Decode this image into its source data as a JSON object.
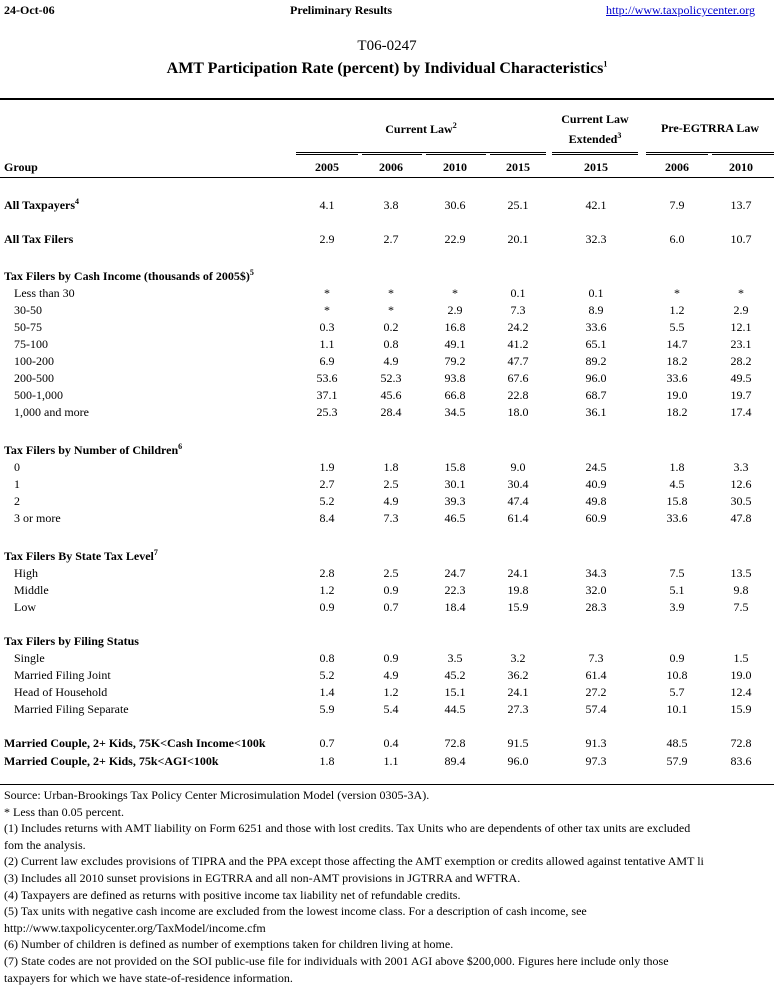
{
  "header": {
    "date": "24-Oct-06",
    "status": "Preliminary Results",
    "url": "http://www.taxpolicycenter.org"
  },
  "title": {
    "code": "T06-0247",
    "main": "AMT Participation Rate (percent) by Individual Characteristics",
    "main_sup": "1"
  },
  "table": {
    "group_header": "Group",
    "column_groups": [
      {
        "label": "Current Law",
        "sup": "2"
      },
      {
        "label": "Current Law",
        "label2": "Extended",
        "sup": "3"
      },
      {
        "label": "Pre-EGTRRA Law"
      }
    ],
    "years": [
      "2005",
      "2006",
      "2010",
      "2015",
      "2015",
      "2006",
      "2010"
    ],
    "sections": [
      {
        "title": "All Taxpayers",
        "sup": "4",
        "bold_row": true,
        "rows": [
          {
            "label": "All Taxpayers",
            "values": [
              "4.1",
              "3.8",
              "30.6",
              "25.1",
              "42.1",
              "7.9",
              "13.7"
            ]
          }
        ]
      },
      {
        "title": "All Tax Filers",
        "bold_row": true,
        "rows": [
          {
            "label": "All Tax Filers",
            "values": [
              "2.9",
              "2.7",
              "22.9",
              "20.1",
              "32.3",
              "6.0",
              "10.7"
            ]
          }
        ]
      },
      {
        "title": "Tax Filers by Cash Income (thousands of 2005$)",
        "sup": "5",
        "rows": [
          {
            "label": "Less than 30",
            "values": [
              "*",
              "*",
              "*",
              "0.1",
              "0.1",
              "*",
              "*"
            ]
          },
          {
            "label": "30-50",
            "values": [
              "*",
              "*",
              "2.9",
              "7.3",
              "8.9",
              "1.2",
              "2.9"
            ]
          },
          {
            "label": "50-75",
            "values": [
              "0.3",
              "0.2",
              "16.8",
              "24.2",
              "33.6",
              "5.5",
              "12.1"
            ]
          },
          {
            "label": "75-100",
            "values": [
              "1.1",
              "0.8",
              "49.1",
              "41.2",
              "65.1",
              "14.7",
              "23.1"
            ]
          },
          {
            "label": "100-200",
            "values": [
              "6.9",
              "4.9",
              "79.2",
              "47.7",
              "89.2",
              "18.2",
              "28.2"
            ]
          },
          {
            "label": "200-500",
            "values": [
              "53.6",
              "52.3",
              "93.8",
              "67.6",
              "96.0",
              "33.6",
              "49.5"
            ]
          },
          {
            "label": "500-1,000",
            "values": [
              "37.1",
              "45.6",
              "66.8",
              "22.8",
              "68.7",
              "19.0",
              "19.7"
            ]
          },
          {
            "label": "1,000 and more",
            "values": [
              "25.3",
              "28.4",
              "34.5",
              "18.0",
              "36.1",
              "18.2",
              "17.4"
            ]
          }
        ]
      },
      {
        "title": "Tax Filers by Number of Children",
        "sup": "6",
        "rows": [
          {
            "label": "0",
            "values": [
              "1.9",
              "1.8",
              "15.8",
              "9.0",
              "24.5",
              "1.8",
              "3.3"
            ]
          },
          {
            "label": "1",
            "values": [
              "2.7",
              "2.5",
              "30.1",
              "30.4",
              "40.9",
              "4.5",
              "12.6"
            ]
          },
          {
            "label": "2",
            "values": [
              "5.2",
              "4.9",
              "39.3",
              "47.4",
              "49.8",
              "15.8",
              "30.5"
            ]
          },
          {
            "label": "3 or more",
            "values": [
              "8.4",
              "7.3",
              "46.5",
              "61.4",
              "60.9",
              "33.6",
              "47.8"
            ]
          }
        ]
      },
      {
        "title": "Tax Filers By State Tax Level",
        "sup": "7",
        "rows": [
          {
            "label": "High",
            "values": [
              "2.8",
              "2.5",
              "24.7",
              "24.1",
              "34.3",
              "7.5",
              "13.5"
            ]
          },
          {
            "label": "Middle",
            "values": [
              "1.2",
              "0.9",
              "22.3",
              "19.8",
              "32.0",
              "5.1",
              "9.8"
            ]
          },
          {
            "label": "Low",
            "values": [
              "0.9",
              "0.7",
              "18.4",
              "15.9",
              "28.3",
              "3.9",
              "7.5"
            ]
          }
        ]
      },
      {
        "title": "Tax Filers by Filing Status",
        "rows": [
          {
            "label": "Single",
            "values": [
              "0.8",
              "0.9",
              "3.5",
              "3.2",
              "7.3",
              "0.9",
              "1.5"
            ]
          },
          {
            "label": "Married Filing Joint",
            "values": [
              "5.2",
              "4.9",
              "45.2",
              "36.2",
              "61.4",
              "10.8",
              "19.0"
            ]
          },
          {
            "label": "Head of Household",
            "values": [
              "1.4",
              "1.2",
              "15.1",
              "24.1",
              "27.2",
              "5.7",
              "12.4"
            ]
          },
          {
            "label": "Married Filing Separate",
            "values": [
              "5.9",
              "5.4",
              "44.5",
              "27.3",
              "57.4",
              "10.1",
              "15.9"
            ]
          }
        ]
      }
    ],
    "married_rows": [
      {
        "label": "Married Couple, 2+ Kids, 75K<Cash Income<100k",
        "values": [
          "0.7",
          "0.4",
          "72.8",
          "91.5",
          "91.3",
          "48.5",
          "72.8"
        ]
      },
      {
        "label": "Married Couple, 2+ Kids, 75k<AGI<100k",
        "values": [
          "1.8",
          "1.1",
          "89.4",
          "96.0",
          "97.3",
          "57.9",
          "83.6"
        ]
      }
    ]
  },
  "footnotes": [
    "Source: Urban-Brookings Tax Policy Center Microsimulation Model (version 0305-3A).",
    "* Less than 0.05 percent.",
    "(1) Includes returns with AMT liability on Form 6251 and those with lost credits. Tax Units who are dependents of other tax units are excluded",
    "fom the analysis.",
    "(2) Current law excludes provisions of TIPRA and the PPA except those affecting the AMT exemption or credits allowed against tentative AMT li",
    "(3) Includes all 2010 sunset provisions in EGTRRA and all non-AMT provisions in JGTRRA and WFTRA.",
    "(4) Taxpayers are defined as returns with positive income tax liability net of refundable credits.",
    "(5) Tax units with negative cash income are excluded from the lowest income class. For a description of cash income, see",
    "http://www.taxpolicycenter.org/TaxModel/income.cfm",
    "(6) Number of children is defined as number of exemptions taken for children living at home.",
    "(7) State codes are not provided on the SOI public-use file for individuals with 2001 AGI above $200,000.  Figures here include only those",
    "taxpayers for which we have state-of-residence information."
  ]
}
